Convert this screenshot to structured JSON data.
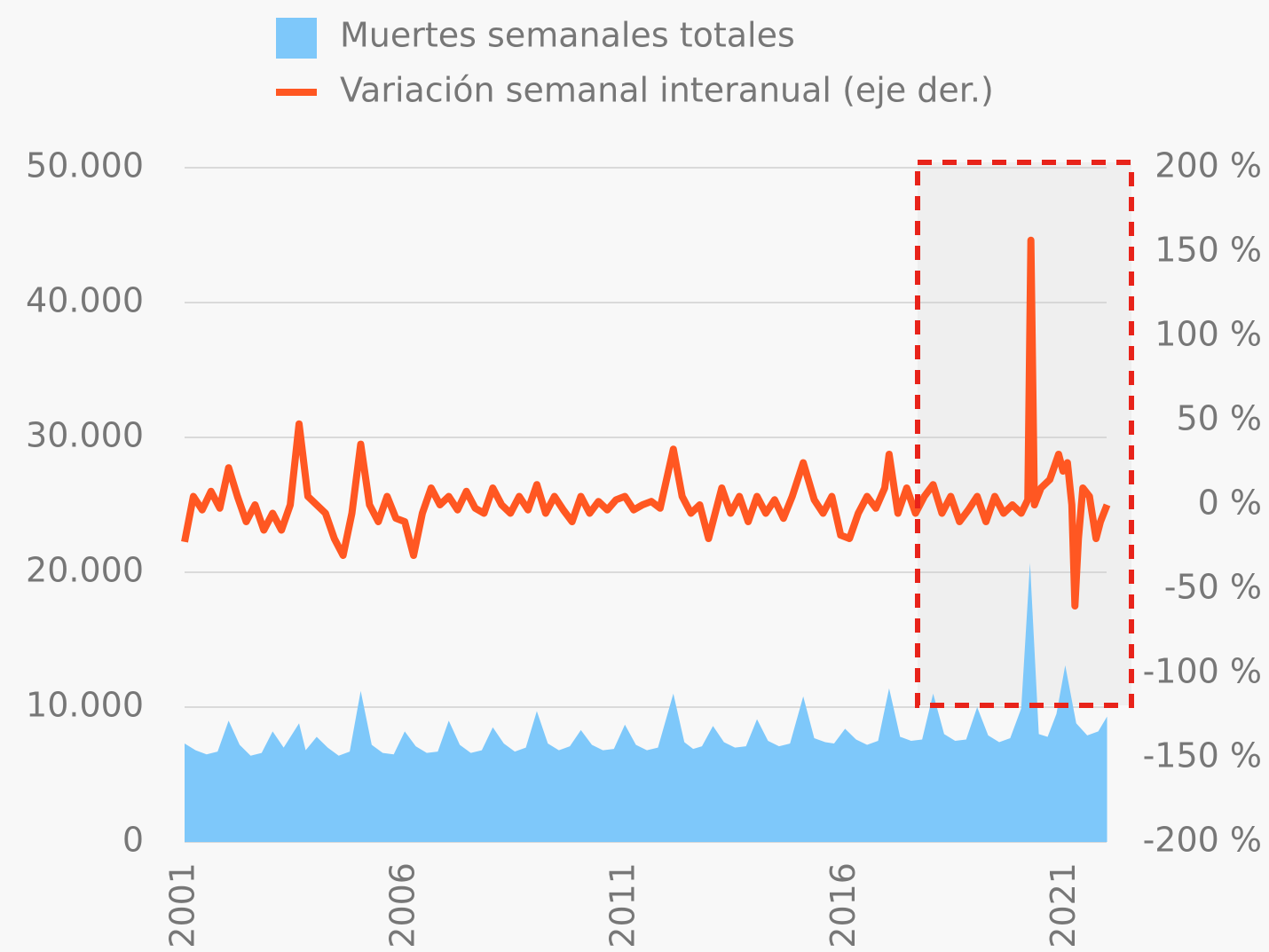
{
  "chart_data": {
    "type": "area_line",
    "xlim": [
      2001,
      2022
    ],
    "xticks": [
      2001,
      2006,
      2011,
      2016,
      2021
    ],
    "ylim": [
      0,
      50000
    ],
    "yticks": [
      0,
      {
        "value": 10000,
        "label": "10.000"
      },
      {
        "value": 20000,
        "label": "20.000"
      },
      {
        "value": 30000,
        "label": "30.000"
      },
      {
        "value": 40000,
        "label": "40.000"
      },
      {
        "value": 50000,
        "label": "50.000"
      }
    ],
    "y2lim": [
      -200,
      200
    ],
    "y2ticks": [
      {
        "value": -200,
        "label": "-200 %"
      },
      {
        "value": -150,
        "label": "-150 %"
      },
      {
        "value": -100,
        "label": "-100 %"
      },
      {
        "value": -50,
        "label": "-50 %"
      },
      {
        "value": 0,
        "label": "0 %"
      },
      {
        "value": 50,
        "label": "50 %"
      },
      {
        "value": 100,
        "label": "100 %"
      },
      {
        "value": 150,
        "label": "150 %"
      },
      {
        "value": 200,
        "label": "200 %"
      }
    ],
    "grid": true,
    "series": [
      {
        "name": "Muertes semanales totales",
        "kind": "area",
        "color": "#7ec8fa",
        "x": [
          2001.0,
          2001.25,
          2001.5,
          2001.75,
          2002.0,
          2002.25,
          2002.5,
          2002.75,
          2003.0,
          2003.25,
          2003.6,
          2003.75,
          2004.0,
          2004.25,
          2004.5,
          2004.75,
          2005.0,
          2005.25,
          2005.5,
          2005.75,
          2006.0,
          2006.25,
          2006.5,
          2006.75,
          2007.0,
          2007.25,
          2007.5,
          2007.75,
          2008.0,
          2008.25,
          2008.5,
          2008.75,
          2009.0,
          2009.25,
          2009.5,
          2009.75,
          2010.0,
          2010.25,
          2010.5,
          2010.75,
          2011.0,
          2011.25,
          2011.5,
          2011.75,
          2012.1,
          2012.35,
          2012.55,
          2012.75,
          2013.0,
          2013.25,
          2013.5,
          2013.75,
          2014.0,
          2014.25,
          2014.5,
          2014.75,
          2015.05,
          2015.3,
          2015.55,
          2015.75,
          2016.0,
          2016.25,
          2016.5,
          2016.75,
          2017.0,
          2017.25,
          2017.5,
          2017.75,
          2018.0,
          2018.25,
          2018.5,
          2018.75,
          2019.0,
          2019.25,
          2019.5,
          2019.75,
          2020.0,
          2020.2,
          2020.4,
          2020.6,
          2020.8,
          2021.0,
          2021.25,
          2021.5,
          2021.75,
          2021.95
        ],
        "values": [
          7300,
          6800,
          6500,
          6700,
          9000,
          7200,
          6400,
          6600,
          8200,
          7000,
          8800,
          6800,
          7800,
          7000,
          6400,
          6700,
          11200,
          7200,
          6600,
          6500,
          8200,
          7100,
          6600,
          6700,
          9000,
          7200,
          6600,
          6800,
          8500,
          7300,
          6700,
          7000,
          9700,
          7300,
          6800,
          7100,
          8300,
          7200,
          6800,
          6900,
          8700,
          7200,
          6800,
          7000,
          11000,
          7400,
          6900,
          7100,
          8600,
          7400,
          7000,
          7100,
          9100,
          7500,
          7100,
          7300,
          10800,
          7700,
          7400,
          7300,
          8400,
          7600,
          7200,
          7500,
          11400,
          7800,
          7500,
          7600,
          11000,
          8000,
          7500,
          7600,
          10000,
          7900,
          7400,
          7700,
          9900,
          20700,
          8000,
          7800,
          9500,
          13100,
          8800,
          7900,
          8200,
          9300
        ]
      },
      {
        "name": "Variación semanal interanual (eje der.)",
        "kind": "line",
        "axis": "y2",
        "color": "#ff5722",
        "x": [
          2001.0,
          2001.2,
          2001.4,
          2001.6,
          2001.8,
          2002.0,
          2002.2,
          2002.4,
          2002.6,
          2002.8,
          2003.0,
          2003.2,
          2003.4,
          2003.6,
          2003.8,
          2004.0,
          2004.2,
          2004.4,
          2004.6,
          2004.8,
          2005.0,
          2005.2,
          2005.4,
          2005.6,
          2005.8,
          2006.0,
          2006.2,
          2006.4,
          2006.6,
          2006.8,
          2007.0,
          2007.2,
          2007.4,
          2007.6,
          2007.8,
          2008.0,
          2008.2,
          2008.4,
          2008.6,
          2008.8,
          2009.0,
          2009.2,
          2009.4,
          2009.6,
          2009.8,
          2010.0,
          2010.2,
          2010.4,
          2010.6,
          2010.8,
          2011.0,
          2011.2,
          2011.4,
          2011.6,
          2011.8,
          2012.1,
          2012.3,
          2012.5,
          2012.7,
          2012.9,
          2013.0,
          2013.2,
          2013.4,
          2013.6,
          2013.8,
          2014.0,
          2014.2,
          2014.4,
          2014.6,
          2014.8,
          2015.05,
          2015.3,
          2015.5,
          2015.7,
          2015.9,
          2016.1,
          2016.3,
          2016.5,
          2016.7,
          2016.9,
          2017.0,
          2017.2,
          2017.4,
          2017.6,
          2017.8,
          2018.0,
          2018.2,
          2018.4,
          2018.6,
          2018.8,
          2019.0,
          2019.2,
          2019.4,
          2019.6,
          2019.8,
          2020.0,
          2020.15,
          2020.22,
          2020.3,
          2020.45,
          2020.65,
          2020.85,
          2020.95,
          2021.05,
          2021.15,
          2021.22,
          2021.3,
          2021.4,
          2021.55,
          2021.7,
          2021.8,
          2021.95
        ],
        "values": [
          -22,
          5,
          -3,
          8,
          -2,
          22,
          5,
          -10,
          0,
          -15,
          -5,
          -15,
          0,
          48,
          5,
          0,
          -5,
          -20,
          -30,
          -5,
          36,
          0,
          -10,
          5,
          -8,
          -10,
          -30,
          -5,
          10,
          0,
          5,
          -3,
          8,
          -2,
          -5,
          10,
          0,
          -5,
          5,
          -3,
          12,
          -5,
          5,
          -3,
          -10,
          5,
          -5,
          2,
          -3,
          3,
          5,
          -3,
          0,
          2,
          -2,
          33,
          5,
          -5,
          0,
          -20,
          -10,
          10,
          -5,
          5,
          -10,
          5,
          -5,
          3,
          -8,
          5,
          25,
          3,
          -5,
          5,
          -18,
          -20,
          -5,
          5,
          -2,
          10,
          30,
          -5,
          10,
          -5,
          5,
          12,
          -5,
          5,
          -10,
          -3,
          5,
          -10,
          5,
          -5,
          0,
          -5,
          3,
          157,
          0,
          10,
          15,
          30,
          20,
          25,
          0,
          -60,
          -20,
          10,
          5,
          -20,
          -10,
          0
        ]
      }
    ]
  }
}
